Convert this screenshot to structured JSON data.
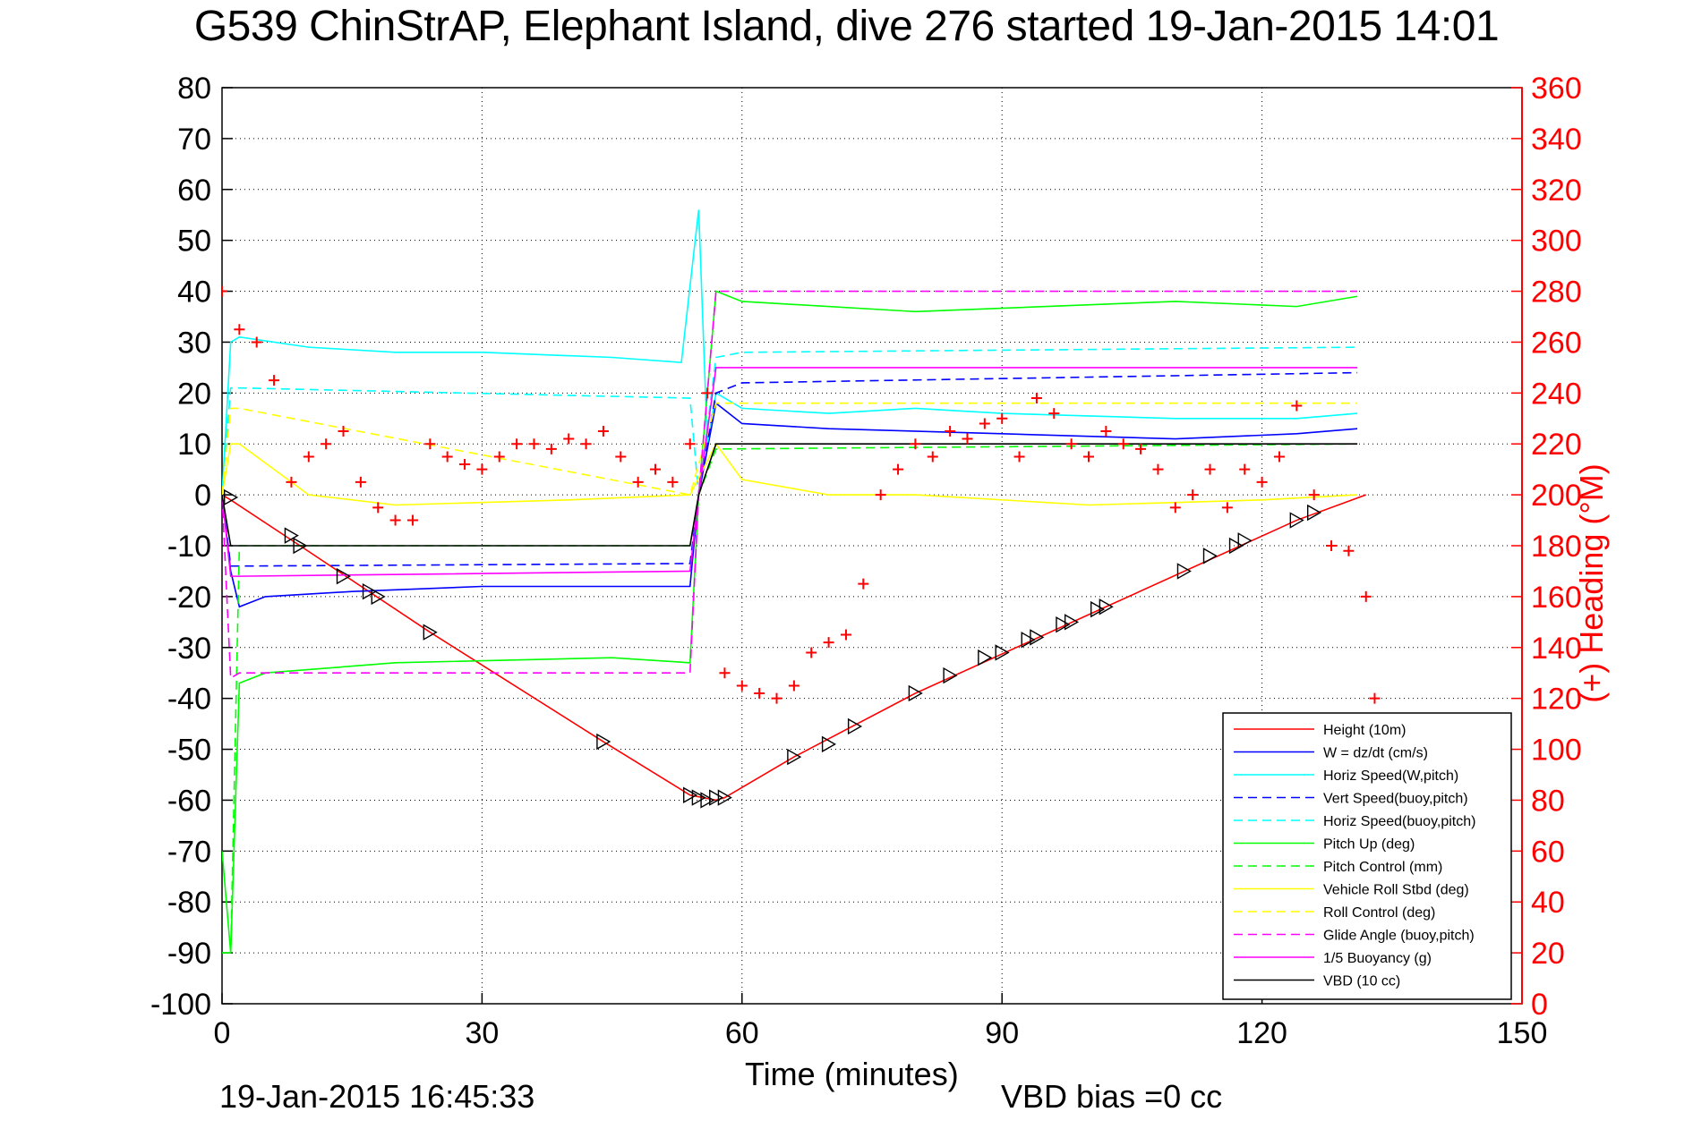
{
  "title": "G539 ChinStrAP, Elephant Island, dive 276 started 19-Jan-2015 14:01",
  "timestamp": "19-Jan-2015 16:45:33",
  "vbd_bias": "VBD bias =0 cc",
  "chart_data": {
    "type": "line",
    "title": "G539 ChinStrAP, Elephant Island, dive 276 started 19-Jan-2015 14:01",
    "xlabel": "Time (minutes)",
    "ylabel": "",
    "ylabel_right": "(+) Heading (°M)",
    "xlim": [
      0,
      150
    ],
    "ylim": [
      -100,
      80
    ],
    "ylim_right": [
      0,
      360
    ],
    "xticks": [
      0,
      30,
      60,
      90,
      120,
      150
    ],
    "yticks": [
      -100,
      -90,
      -80,
      -70,
      -60,
      -50,
      -40,
      -30,
      -20,
      -10,
      0,
      10,
      20,
      30,
      40,
      50,
      60,
      70,
      80
    ],
    "yticks_right": [
      0,
      20,
      40,
      60,
      80,
      100,
      120,
      140,
      160,
      180,
      200,
      220,
      240,
      260,
      280,
      300,
      320,
      340,
      360
    ],
    "grid": true,
    "legend_position": "bottom-right",
    "series": [
      {
        "name": "Height (10m)",
        "color": "#ff0000",
        "style": "solid",
        "x": [
          0,
          1,
          9,
          24,
          44,
          54,
          57,
          58,
          66,
          80,
          102,
          124,
          132
        ],
        "y": [
          0,
          -1,
          -10,
          -27,
          -48.5,
          -59,
          -60,
          -59.5,
          -51.5,
          -39,
          -22,
          -5,
          0
        ]
      },
      {
        "name": "W = dz/dt (cm/s)",
        "color": "#0000ff",
        "style": "solid",
        "x": [
          0,
          1,
          2,
          5,
          15,
          30,
          45,
          54,
          55,
          57,
          60,
          70,
          90,
          110,
          124,
          131
        ],
        "y": [
          0,
          -15,
          -22,
          -20,
          -19,
          -18,
          -18,
          -18,
          0,
          18,
          14,
          13,
          12,
          11,
          12,
          13
        ]
      },
      {
        "name": "Horiz Speed(W,pitch)",
        "color": "#00ffff",
        "style": "solid",
        "x": [
          0,
          1,
          2,
          10,
          20,
          30,
          45,
          53,
          55,
          56,
          57,
          60,
          70,
          80,
          90,
          110,
          124,
          131
        ],
        "y": [
          0,
          30,
          31,
          29,
          28,
          28,
          27,
          26,
          56,
          10,
          20,
          17,
          16,
          17,
          16,
          15,
          15,
          16
        ]
      },
      {
        "name": "Vert Speed(buoy,pitch)",
        "color": "#0000ff",
        "style": "dashed",
        "x": [
          0,
          1,
          2,
          54,
          55,
          57,
          60,
          131
        ],
        "y": [
          0,
          -14,
          -14,
          -13.5,
          0,
          20,
          22,
          24
        ]
      },
      {
        "name": "Horiz Speed(buoy,pitch)",
        "color": "#00ffff",
        "style": "dashed",
        "x": [
          0,
          1,
          2,
          54,
          55,
          57,
          60,
          131
        ],
        "y": [
          0,
          21,
          21,
          19,
          0,
          27,
          28,
          29
        ]
      },
      {
        "name": "Pitch Up (deg)",
        "color": "#00ff00",
        "style": "solid",
        "x": [
          0,
          1,
          2,
          5,
          20,
          45,
          54,
          55,
          57,
          60,
          80,
          110,
          124,
          131
        ],
        "y": [
          -70,
          -90,
          -37,
          -35,
          -33,
          -32,
          -33,
          0,
          40,
          38,
          36,
          38,
          37,
          39
        ]
      },
      {
        "name": "Pitch Control (mm)",
        "color": "#00ff00",
        "style": "dashed",
        "x": [
          0,
          1,
          2,
          54,
          55,
          57,
          131
        ],
        "y": [
          -90,
          -90,
          -10,
          -10,
          0,
          9,
          10
        ]
      },
      {
        "name": "Vehicle Roll Stbd (deg)",
        "color": "#ffff00",
        "style": "solid",
        "x": [
          0,
          1,
          2,
          10,
          20,
          40,
          54,
          57,
          60,
          70,
          80,
          100,
          120,
          131
        ],
        "y": [
          0,
          10,
          10,
          0,
          -2,
          -1,
          0,
          10,
          3,
          0,
          0,
          -2,
          -1,
          0
        ]
      },
      {
        "name": "Roll Control (deg)",
        "color": "#ffff00",
        "style": "dashed",
        "x": [
          0,
          1,
          2,
          54,
          57,
          131
        ],
        "y": [
          0,
          17,
          17,
          0,
          18,
          18
        ]
      },
      {
        "name": "Glide Angle (buoy,pitch)",
        "color": "#ff00ff",
        "style": "dashed",
        "x": [
          0,
          1,
          2,
          54,
          55,
          57,
          131
        ],
        "y": [
          0,
          -36,
          -35,
          -35,
          0,
          40,
          40
        ]
      },
      {
        "name": "1/5 Buoyancy (g)",
        "color": "#ff00ff",
        "style": "solid",
        "x": [
          0,
          1,
          2,
          54,
          55,
          57,
          131
        ],
        "y": [
          0,
          -16,
          -16,
          -15,
          0,
          25,
          25
        ]
      },
      {
        "name": "VBD (10 cc)",
        "color": "#000000",
        "style": "solid",
        "x": [
          0,
          1,
          2,
          54,
          55,
          57,
          131
        ],
        "y": [
          0,
          -10,
          -10,
          -10,
          0,
          10,
          10
        ]
      }
    ],
    "heading_series": {
      "color": "#ff0000",
      "marker": "+",
      "axis": "right",
      "x": [
        0,
        2,
        4,
        6,
        8,
        10,
        12,
        14,
        16,
        18,
        20,
        22,
        24,
        26,
        28,
        30,
        32,
        34,
        36,
        38,
        40,
        42,
        44,
        46,
        48,
        50,
        52,
        54,
        56,
        58,
        60,
        62,
        64,
        66,
        68,
        70,
        72,
        74,
        76,
        78,
        80,
        82,
        84,
        86,
        88,
        90,
        92,
        94,
        96,
        98,
        100,
        102,
        104,
        106,
        108,
        110,
        112,
        114,
        116,
        118,
        120,
        122,
        124,
        126,
        128,
        130,
        132,
        133
      ],
      "y": [
        280,
        265,
        260,
        245,
        205,
        215,
        220,
        225,
        205,
        195,
        190,
        190,
        220,
        215,
        212,
        210,
        215,
        220,
        220,
        218,
        222,
        220,
        225,
        215,
        205,
        210,
        205,
        220,
        240,
        130,
        125,
        122,
        120,
        125,
        138,
        142,
        145,
        165,
        200,
        210,
        220,
        215,
        225,
        222,
        228,
        230,
        215,
        238,
        232,
        220,
        215,
        225,
        220,
        218,
        210,
        195,
        200,
        210,
        195,
        210,
        205,
        215,
        235,
        200,
        180,
        178,
        160,
        120
      ]
    },
    "markers": {
      "x": [
        1,
        8,
        9,
        14,
        17,
        18,
        24,
        44,
        54,
        55,
        56,
        57,
        58,
        66,
        70,
        73,
        80,
        84,
        88,
        90,
        93,
        94,
        97,
        98,
        101,
        102,
        111,
        114,
        117,
        118,
        124,
        126
      ],
      "y": [
        -0.5,
        -8,
        -10,
        -16,
        -19,
        -20,
        -27,
        -48.5,
        -59,
        -59.5,
        -60,
        -59.5,
        -59.5,
        -51.5,
        -49,
        -45.5,
        -39,
        -35.5,
        -32,
        -31,
        -28.5,
        -28,
        -25.5,
        -25,
        -22.5,
        -22,
        -15,
        -12,
        -10,
        -9,
        -5,
        -3.5
      ]
    }
  }
}
